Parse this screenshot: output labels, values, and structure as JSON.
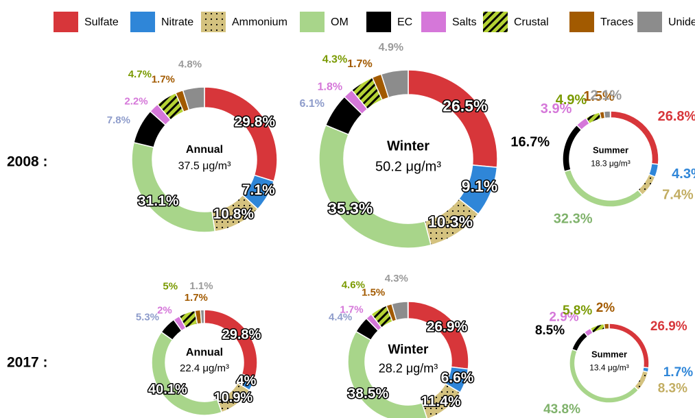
{
  "row_labels": [
    "2008 :",
    "2017 :"
  ],
  "chart_data": [
    {
      "type": "donut",
      "title": "Annual",
      "subtitle": "37.5 μg/m³",
      "categories": [
        "Sulfate",
        "Nitrate",
        "Ammonium",
        "OM",
        "EC",
        "Salts",
        "Crustal",
        "Traces",
        "Unidentified"
      ],
      "values": [
        29.8,
        7.1,
        10.8,
        31.1,
        7.8,
        2.2,
        4.7,
        1.7,
        4.8
      ],
      "value_labels": [
        "29.8%",
        "7.1%",
        "10.8%",
        "31.1%",
        "7.8%",
        "2.2%",
        "4.7%",
        "1.7%",
        "4.8%"
      ],
      "colors": [
        "#d7363a",
        "#2f86d8",
        "#d4c27f",
        "#a8d58a",
        "#000000",
        "#d577d9",
        "#b5d334",
        "#a25a00",
        "#8c8c8c"
      ],
      "patterns": [
        null,
        null,
        "dots",
        null,
        null,
        null,
        "stripes",
        null,
        null
      ],
      "label_colors": [
        "#d7363a",
        "#2f86d8",
        "#c2ad62",
        "#7fb26b",
        "#8e9ccb",
        "#d577d9",
        "#7a9a01",
        "#a25a00",
        "#9a9a9a"
      ]
    },
    {
      "type": "donut",
      "title": "Winter",
      "subtitle": "50.2 μg/m³",
      "categories": [
        "Sulfate",
        "Nitrate",
        "Ammonium",
        "OM",
        "EC",
        "Salts",
        "Crustal",
        "Traces",
        "Unidentified"
      ],
      "values": [
        26.5,
        9.1,
        10.3,
        35.3,
        6.1,
        1.8,
        4.3,
        1.7,
        4.9
      ],
      "value_labels": [
        "26.5%",
        "9.1%",
        "10.3%",
        "35.3%",
        "6.1%",
        "1.8%",
        "4.3%",
        "1.7%",
        "4.9%"
      ],
      "colors": [
        "#d7363a",
        "#2f86d8",
        "#d4c27f",
        "#a8d58a",
        "#000000",
        "#d577d9",
        "#b5d334",
        "#a25a00",
        "#8c8c8c"
      ],
      "patterns": [
        null,
        null,
        "dots",
        null,
        null,
        null,
        "stripes",
        null,
        null
      ],
      "label_colors": [
        "#d7363a",
        "#2f86d8",
        "#c2ad62",
        "#7fb26b",
        "#8e9ccb",
        "#d577d9",
        "#7a9a01",
        "#a25a00",
        "#9a9a9a"
      ]
    },
    {
      "type": "donut",
      "title": "Summer",
      "subtitle": "18.3 μg/m³",
      "categories": [
        "Sulfate",
        "Nitrate",
        "Ammonium",
        "OM",
        "EC",
        "Salts",
        "Crustal",
        "Traces",
        "Unidentified"
      ],
      "values": [
        26.8,
        4.3,
        7.4,
        32.3,
        16.7,
        3.9,
        4.9,
        1.5,
        2.1
      ],
      "value_labels": [
        "26.8%",
        "4.3%",
        "7.4%",
        "32.3%",
        "16.7%",
        "3.9%",
        "4.9%",
        "1.5%",
        "2.1%"
      ],
      "colors": [
        "#d7363a",
        "#2f86d8",
        "#d4c27f",
        "#a8d58a",
        "#000000",
        "#d577d9",
        "#b5d334",
        "#a25a00",
        "#8c8c8c"
      ],
      "patterns": [
        null,
        null,
        "dots",
        null,
        null,
        null,
        "stripes",
        null,
        null
      ],
      "label_colors": [
        "#d7363a",
        "#2f86d8",
        "#c2ad62",
        "#7fb26b",
        "#000000",
        "#d577d9",
        "#7a9a01",
        "#a25a00",
        "#9a9a9a"
      ]
    },
    {
      "type": "donut",
      "title": "Annual",
      "subtitle": "22.4 μg/m³",
      "categories": [
        "Sulfate",
        "Nitrate",
        "Ammonium",
        "OM",
        "EC",
        "Salts",
        "Crustal",
        "Traces",
        "Unidentified"
      ],
      "values": [
        29.8,
        4,
        10.9,
        40.1,
        5.3,
        2,
        5,
        1.7,
        1.1
      ],
      "value_labels": [
        "29.8%",
        "4%",
        "10.9%",
        "40.1%",
        "5.3%",
        "2%",
        "5%",
        "1.7%",
        "1.1%"
      ],
      "colors": [
        "#d7363a",
        "#2f86d8",
        "#d4c27f",
        "#a8d58a",
        "#000000",
        "#d577d9",
        "#b5d334",
        "#a25a00",
        "#8c8c8c"
      ],
      "patterns": [
        null,
        null,
        "dots",
        null,
        null,
        null,
        "stripes",
        null,
        null
      ],
      "label_colors": [
        "#d7363a",
        "#2f86d8",
        "#c2ad62",
        "#7fb26b",
        "#8e9ccb",
        "#d577d9",
        "#7a9a01",
        "#a25a00",
        "#9a9a9a"
      ]
    },
    {
      "type": "donut",
      "title": "Winter",
      "subtitle": "28.2 μg/m³",
      "categories": [
        "Sulfate",
        "Nitrate",
        "Ammonium",
        "OM",
        "EC",
        "Salts",
        "Crustal",
        "Traces",
        "Unidentified"
      ],
      "values": [
        26.9,
        6.6,
        11.4,
        38.5,
        4.4,
        1.7,
        4.6,
        1.5,
        4.3
      ],
      "value_labels": [
        "26.9%",
        "6.6%",
        "11.4%",
        "38.5%",
        "4.4%",
        "1.7%",
        "4.6%",
        "1.5%",
        "4.3%"
      ],
      "colors": [
        "#d7363a",
        "#2f86d8",
        "#d4c27f",
        "#a8d58a",
        "#000000",
        "#d577d9",
        "#b5d334",
        "#a25a00",
        "#8c8c8c"
      ],
      "patterns": [
        null,
        null,
        "dots",
        null,
        null,
        null,
        "stripes",
        null,
        null
      ],
      "label_colors": [
        "#d7363a",
        "#2f86d8",
        "#c2ad62",
        "#7fb26b",
        "#8e9ccb",
        "#d577d9",
        "#7a9a01",
        "#a25a00",
        "#9a9a9a"
      ]
    },
    {
      "type": "donut",
      "title": "Summer",
      "subtitle": "13.4 μg/m³",
      "categories": [
        "Sulfate",
        "Nitrate",
        "Ammonium",
        "OM",
        "EC",
        "Salts",
        "Crustal",
        "Traces",
        "Unidentified"
      ],
      "values": [
        26.9,
        1.7,
        8.3,
        43.8,
        8.5,
        2.9,
        5.8,
        2,
        null
      ],
      "value_labels": [
        "26.9%",
        "1.7%",
        "8.3%",
        "43.8%",
        "8.5%",
        "2.9%",
        "5.8%",
        "2%",
        null
      ],
      "colors": [
        "#d7363a",
        "#2f86d8",
        "#d4c27f",
        "#a8d58a",
        "#000000",
        "#d577d9",
        "#b5d334",
        "#a25a00",
        "#8c8c8c"
      ],
      "patterns": [
        null,
        null,
        "dots",
        null,
        null,
        null,
        "stripes",
        null,
        null
      ],
      "label_colors": [
        "#d7363a",
        "#2f86d8",
        "#c2ad62",
        "#7fb26b",
        "#000000",
        "#d577d9",
        "#7a9a01",
        "#a25a00",
        "#9a9a9a"
      ]
    }
  ]
}
